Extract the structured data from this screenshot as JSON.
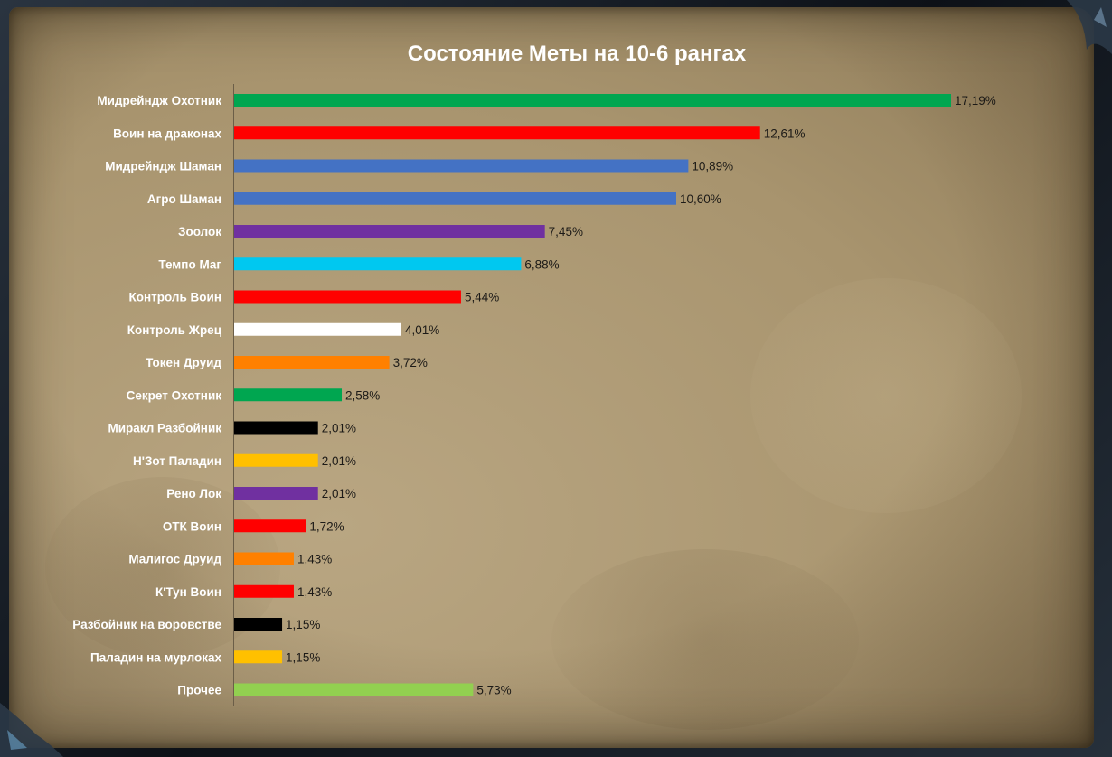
{
  "chart_data": {
    "type": "bar",
    "orientation": "horizontal",
    "title": "Состояние Меты на 10-6 рангах",
    "xlabel": "",
    "ylabel": "",
    "xlim": [
      0,
      17.19
    ],
    "grid": false,
    "legend": "none",
    "categories": [
      "Мидрейндж Охотник",
      "Воин на драконах",
      "Мидрейндж Шаман",
      "Агро Шаман",
      "Зоолок",
      "Темпо Маг",
      "Контроль Воин",
      "Контроль Жрец",
      "Токен Друид",
      "Секрет Охотник",
      "Миракл Разбойник",
      "Н'Зот Паладин",
      "Рено Лок",
      "ОТК Воин",
      "Малигос Друид",
      "К'Тун Воин",
      "Разбойник на воровстве",
      "Паладин на мурлоках",
      "Прочее"
    ],
    "values": [
      17.19,
      12.61,
      10.89,
      10.6,
      7.45,
      6.88,
      5.44,
      4.01,
      3.72,
      2.58,
      2.01,
      2.01,
      2.01,
      1.72,
      1.43,
      1.43,
      1.15,
      1.15,
      5.73
    ],
    "value_labels": [
      "17,19%",
      "12,61%",
      "10,89%",
      "10,60%",
      "7,45%",
      "6,88%",
      "5,44%",
      "4,01%",
      "3,72%",
      "2,58%",
      "2,01%",
      "2,01%",
      "2,01%",
      "1,72%",
      "1,43%",
      "1,43%",
      "1,15%",
      "1,15%",
      "5,73%"
    ],
    "colors": [
      "#00a650",
      "#ff0000",
      "#4472c4",
      "#4472c4",
      "#7030a0",
      "#00c8f0",
      "#ff0000",
      "#ffffff",
      "#ff8000",
      "#00a650",
      "#000000",
      "#ffc000",
      "#7030a0",
      "#ff0000",
      "#ff8000",
      "#ff0000",
      "#000000",
      "#ffc000",
      "#92d050"
    ]
  },
  "theme": {
    "background": "parchment",
    "title_color": "#ffffff",
    "category_label_color": "#ffffff",
    "value_label_color": "#1c1a17",
    "axis_color": "#6b5e48"
  }
}
